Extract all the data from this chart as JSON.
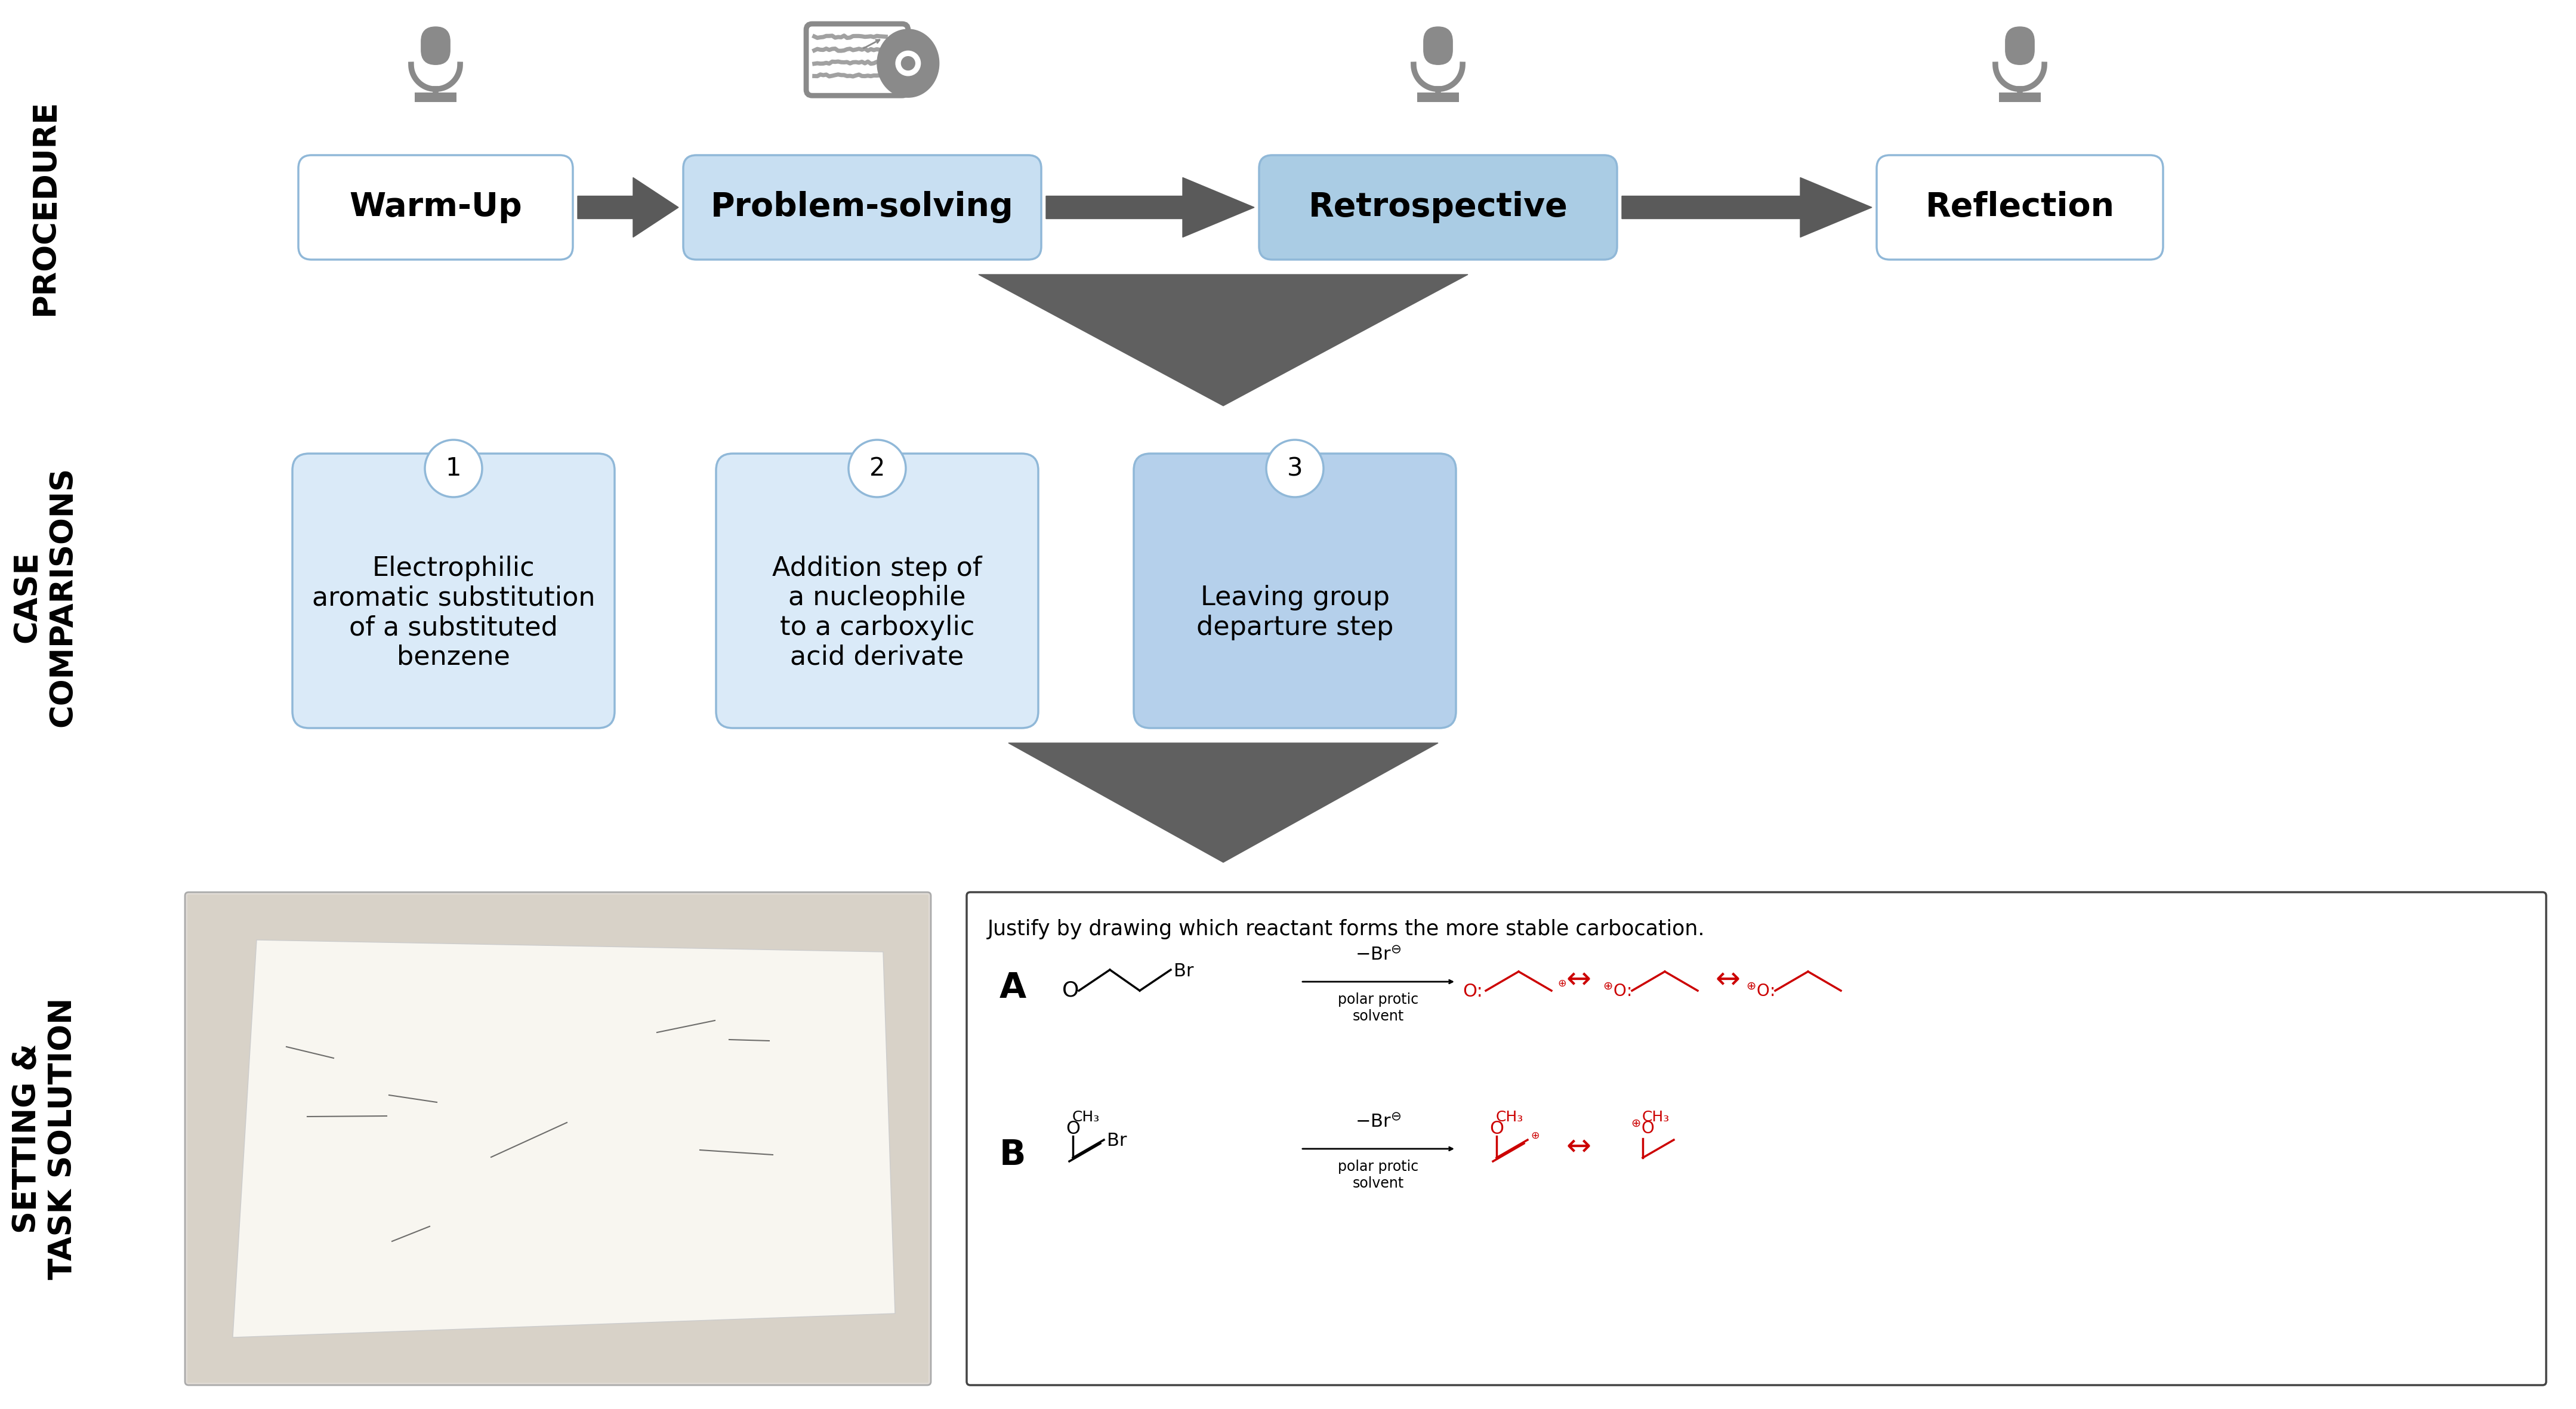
{
  "bg_color": "#ffffff",
  "box_light_blue": "#d4e8f7",
  "box_med_blue": "#aacce8",
  "box_white": "#ffffff",
  "box_border_blue": "#90b8d8",
  "arrow_dark": "#5a5a5a",
  "icon_gray": "#888888",
  "red_color": "#cc0000",
  "procedure_labels": [
    "Warm-Up",
    "Problem-solving",
    "Retrospective",
    "Reflection"
  ],
  "procedure_colors": [
    "#ffffff",
    "#c8dff2",
    "#aacce4",
    "#ffffff"
  ],
  "case_labels": [
    "Electrophilic\naromatic substitution\nof a substituted\nbenzene",
    "Addition step of\na nucleophile\nto a carboxylic\nacid derivate",
    "Leaving group\ndeparture step"
  ],
  "case_colors": [
    "#daeaf8",
    "#daeaf8",
    "#b5d0eb"
  ],
  "justify_text": "Justify by drawing which reactant forms the more stable carbocation."
}
